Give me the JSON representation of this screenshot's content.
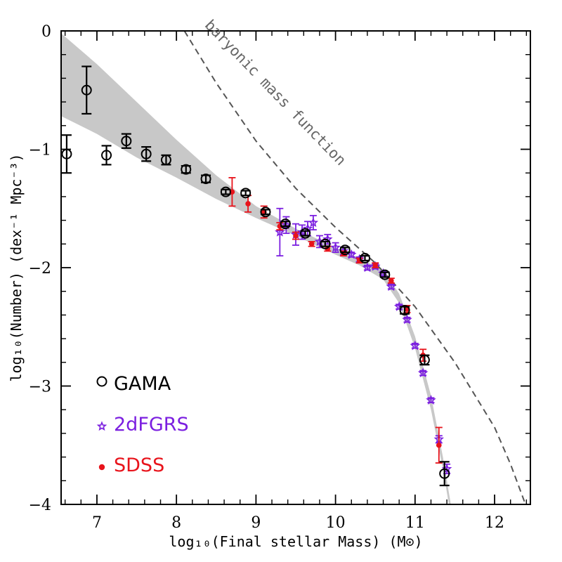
{
  "chart_data": {
    "type": "scatter",
    "title": "",
    "xlabel": "log₁₀(Final stellar Mass) (M⊙)",
    "ylabel": "log₁₀(Number) (dex⁻¹ Mpc⁻³)",
    "xlim": [
      6.55,
      12.45
    ],
    "ylim": [
      -4,
      0
    ],
    "xticks": [
      "7",
      "8",
      "9",
      "10",
      "11",
      "12"
    ],
    "yticks": [
      "0",
      "−1",
      "−2",
      "−3",
      "−4"
    ],
    "grid": false,
    "legend_placement": "bottom-left",
    "colors": {
      "GAMA": "#000000",
      "2dFGRS": "#7b1fe0",
      "SDSS": "#e8131b",
      "model_band": "#c8c8c8",
      "baryonic": "#555555"
    },
    "series": [
      {
        "name": "GAMA",
        "marker": "open-circle",
        "x": [
          6.62,
          6.87,
          7.12,
          7.37,
          7.62,
          7.87,
          8.12,
          8.37,
          8.62,
          8.87,
          9.12,
          9.37,
          9.62,
          9.87,
          10.12,
          10.37,
          10.62,
          10.87,
          11.12,
          11.37
        ],
        "y": [
          -1.04,
          -0.5,
          -1.05,
          -0.93,
          -1.04,
          -1.09,
          -1.17,
          -1.25,
          -1.36,
          -1.37,
          -1.53,
          -1.63,
          -1.71,
          -1.8,
          -1.85,
          -1.92,
          -2.06,
          -2.36,
          -2.78,
          -3.74
        ],
        "yerr": [
          0.16,
          0.2,
          0.08,
          0.06,
          0.06,
          0.04,
          0.03,
          0.03,
          0.02,
          0.02,
          0.02,
          0.02,
          0.02,
          0.02,
          0.02,
          0.02,
          0.02,
          0.03,
          0.04,
          0.1
        ]
      },
      {
        "name": "2dFGRS",
        "marker": "star",
        "x": [
          9.3,
          9.38,
          9.5,
          9.58,
          9.65,
          9.72,
          9.8,
          9.9,
          10.0,
          10.1,
          10.2,
          10.3,
          10.4,
          10.5,
          10.6,
          10.7,
          10.8,
          10.9,
          11.0,
          11.1,
          11.2,
          11.3,
          11.4
        ],
        "y": [
          -1.7,
          -1.64,
          -1.72,
          -1.7,
          -1.67,
          -1.62,
          -1.78,
          -1.76,
          -1.83,
          -1.86,
          -1.89,
          -1.93,
          -2.0,
          -1.99,
          -2.05,
          -2.16,
          -2.33,
          -2.44,
          -2.66,
          -2.89,
          -3.12,
          -3.45,
          -3.7
        ],
        "yerr": [
          0.2,
          0.07,
          0.09,
          0.06,
          0.06,
          0.06,
          0.05,
          0.04,
          0.04,
          0.03,
          0.02,
          0.02,
          0.02,
          0.02,
          0.02,
          0.02,
          0.02,
          0.02,
          0.02,
          0.02,
          0.02,
          0.03,
          0.04
        ]
      },
      {
        "name": "SDSS",
        "marker": "filled-circle",
        "x": [
          8.7,
          8.9,
          9.1,
          9.3,
          9.5,
          9.7,
          9.9,
          10.1,
          10.3,
          10.5,
          10.7,
          10.9,
          11.1,
          11.3
        ],
        "y": [
          -1.36,
          -1.46,
          -1.53,
          -1.65,
          -1.73,
          -1.8,
          -1.84,
          -1.88,
          -1.94,
          -1.98,
          -2.11,
          -2.35,
          -2.74,
          -3.5
        ],
        "yerr": [
          0.12,
          0.07,
          0.05,
          0.03,
          0.03,
          0.02,
          0.02,
          0.02,
          0.02,
          0.02,
          0.02,
          0.03,
          0.05,
          0.15
        ]
      }
    ],
    "model_band": {
      "x": [
        6.55,
        7.0,
        7.5,
        8.0,
        8.5,
        9.0,
        9.5,
        10.0,
        10.3,
        10.6,
        10.8,
        11.0,
        11.2,
        11.35,
        11.45
      ],
      "upper": [
        -0.02,
        -0.28,
        -0.6,
        -0.92,
        -1.22,
        -1.48,
        -1.67,
        -1.83,
        -1.92,
        -2.02,
        -2.22,
        -2.58,
        -3.08,
        -3.6,
        -4.0
      ],
      "lower": [
        -0.72,
        -0.87,
        -1.07,
        -1.24,
        -1.42,
        -1.58,
        -1.73,
        -1.89,
        -1.98,
        -2.1,
        -2.3,
        -2.68,
        -3.2,
        -3.7,
        -4.1
      ]
    },
    "baryonic_mass_function": {
      "x": [
        8.1,
        8.5,
        9.0,
        9.5,
        10.0,
        10.5,
        11.0,
        11.5,
        12.0,
        12.2,
        12.4
      ],
      "y": [
        0.0,
        -0.44,
        -0.93,
        -1.33,
        -1.66,
        -1.96,
        -2.33,
        -2.8,
        -3.35,
        -3.66,
        -4.02
      ]
    },
    "annotations": [
      {
        "text": "baryonic mass function"
      }
    ]
  }
}
